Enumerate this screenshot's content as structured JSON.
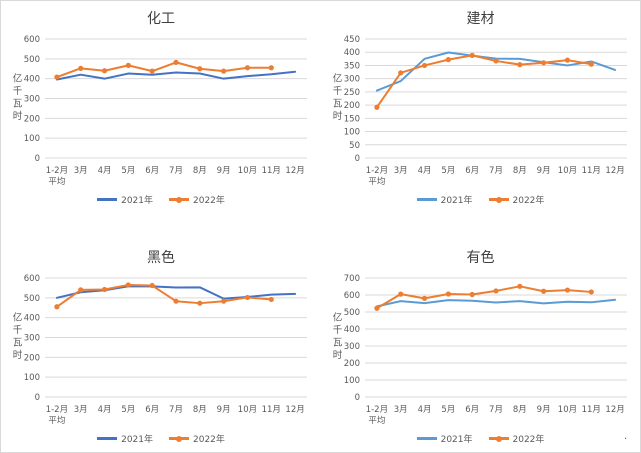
{
  "colors": {
    "background": "#ffffff",
    "gridline": "#d9d9d9",
    "axis_text": "#595959",
    "title_text": "#404040",
    "blue_dark": "#4472C4",
    "blue_light": "#5B9BD5",
    "orange": "#ED7D31"
  },
  "stray_period": ".",
  "chart_data": [
    {
      "type": "line",
      "title": "化工",
      "xlabel": "",
      "ylabel": "亿千瓦时",
      "ylim": [
        0,
        600
      ],
      "ytick_step": 100,
      "grid": true,
      "legend_position": "bottom",
      "categories": [
        [
          "1-2月",
          "平均"
        ],
        [
          "3月"
        ],
        [
          "4月"
        ],
        [
          "5月"
        ],
        [
          "6月"
        ],
        [
          "7月"
        ],
        [
          "8月"
        ],
        [
          "9月"
        ],
        [
          "10月"
        ],
        [
          "11月"
        ],
        [
          "12月"
        ]
      ],
      "series": [
        {
          "name": "2021年",
          "color": "#4472C4",
          "marker": false,
          "values": [
            396,
            420,
            400,
            426,
            420,
            431,
            426,
            400,
            413,
            422,
            435
          ]
        },
        {
          "name": "2022年",
          "color": "#ED7D31",
          "marker": true,
          "values": [
            408,
            452,
            440,
            467,
            438,
            482,
            450,
            438,
            455,
            455,
            null
          ]
        }
      ]
    },
    {
      "type": "line",
      "title": "建材",
      "xlabel": "",
      "ylabel": "亿千瓦时",
      "ylim": [
        0,
        450
      ],
      "ytick_step": 50,
      "grid": true,
      "legend_position": "bottom",
      "categories": [
        [
          "1-2月",
          "平均"
        ],
        [
          "3月"
        ],
        [
          "4月"
        ],
        [
          "5月"
        ],
        [
          "6月"
        ],
        [
          "7月"
        ],
        [
          "8月"
        ],
        [
          "9月"
        ],
        [
          "10月"
        ],
        [
          "11月"
        ],
        [
          "12月"
        ]
      ],
      "series": [
        {
          "name": "2021年",
          "color": "#5B9BD5",
          "marker": false,
          "values": [
            255,
            291,
            375,
            399,
            387,
            376,
            375,
            362,
            350,
            365,
            333
          ]
        },
        {
          "name": "2022年",
          "color": "#ED7D31",
          "marker": true,
          "values": [
            192,
            322,
            350,
            372,
            388,
            367,
            353,
            360,
            370,
            355,
            null
          ]
        }
      ]
    },
    {
      "type": "line",
      "title": "黑色",
      "xlabel": "",
      "ylabel": "亿千瓦时",
      "ylim": [
        0,
        600
      ],
      "ytick_step": 100,
      "grid": true,
      "legend_position": "bottom",
      "categories": [
        [
          "1-2月",
          "平均"
        ],
        [
          "3月"
        ],
        [
          "4月"
        ],
        [
          "5月"
        ],
        [
          "6月"
        ],
        [
          "7月"
        ],
        [
          "8月"
        ],
        [
          "9月"
        ],
        [
          "10月"
        ],
        [
          "11月"
        ],
        [
          "12月"
        ]
      ],
      "series": [
        {
          "name": "2021年",
          "color": "#4472C4",
          "marker": false,
          "values": [
            500,
            528,
            538,
            558,
            558,
            552,
            553,
            496,
            504,
            516,
            520
          ]
        },
        {
          "name": "2022年",
          "color": "#ED7D31",
          "marker": true,
          "values": [
            455,
            540,
            542,
            565,
            562,
            483,
            473,
            483,
            502,
            492,
            null
          ]
        }
      ]
    },
    {
      "type": "line",
      "title": "有色",
      "xlabel": "",
      "ylabel": "亿千瓦时",
      "ylim": [
        0,
        700
      ],
      "ytick_step": 100,
      "grid": true,
      "legend_position": "bottom",
      "categories": [
        [
          "1-2月",
          "平均"
        ],
        [
          "3月"
        ],
        [
          "4月"
        ],
        [
          "5月"
        ],
        [
          "6月"
        ],
        [
          "7月"
        ],
        [
          "8月"
        ],
        [
          "9月"
        ],
        [
          "10月"
        ],
        [
          "11月"
        ],
        [
          "12月"
        ]
      ],
      "series": [
        {
          "name": "2021年",
          "color": "#5B9BD5",
          "marker": false,
          "values": [
            533,
            564,
            552,
            570,
            566,
            556,
            564,
            551,
            560,
            557,
            572
          ]
        },
        {
          "name": "2022年",
          "color": "#ED7D31",
          "marker": true,
          "values": [
            522,
            605,
            580,
            606,
            603,
            624,
            651,
            622,
            629,
            618,
            null
          ]
        }
      ]
    }
  ]
}
